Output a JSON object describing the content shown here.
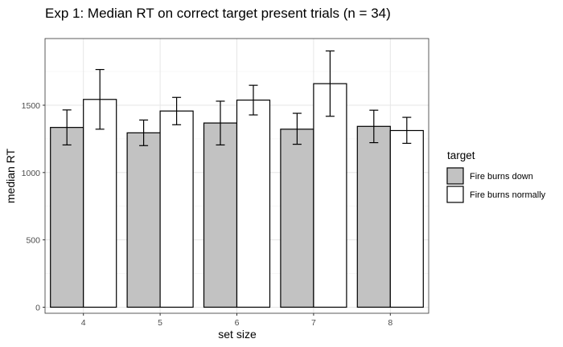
{
  "chart_data": {
    "type": "bar",
    "title": "Exp 1: Median RT on correct target present trials (n = 34)",
    "xlabel": "set size",
    "ylabel": "median RT",
    "categories": [
      "4",
      "5",
      "6",
      "7",
      "8"
    ],
    "series": [
      {
        "name": "Fire burns down",
        "color": "#c2c2c2",
        "values": [
          1335,
          1295,
          1368,
          1322,
          1343
        ],
        "error_low": [
          1205,
          1200,
          1205,
          1210,
          1222
        ],
        "error_high": [
          1465,
          1390,
          1530,
          1440,
          1463
        ]
      },
      {
        "name": "Fire burns normally",
        "color": "#ffffff",
        "values": [
          1543,
          1457,
          1538,
          1660,
          1312
        ],
        "error_low": [
          1322,
          1355,
          1428,
          1418,
          1217
        ],
        "error_high": [
          1765,
          1558,
          1648,
          1903,
          1410
        ]
      }
    ],
    "ylim": [
      -45,
      1995
    ],
    "yticks": [
      0,
      500,
      1000,
      1500
    ],
    "grid": true,
    "legend": {
      "title": "target",
      "placement": "right"
    }
  }
}
